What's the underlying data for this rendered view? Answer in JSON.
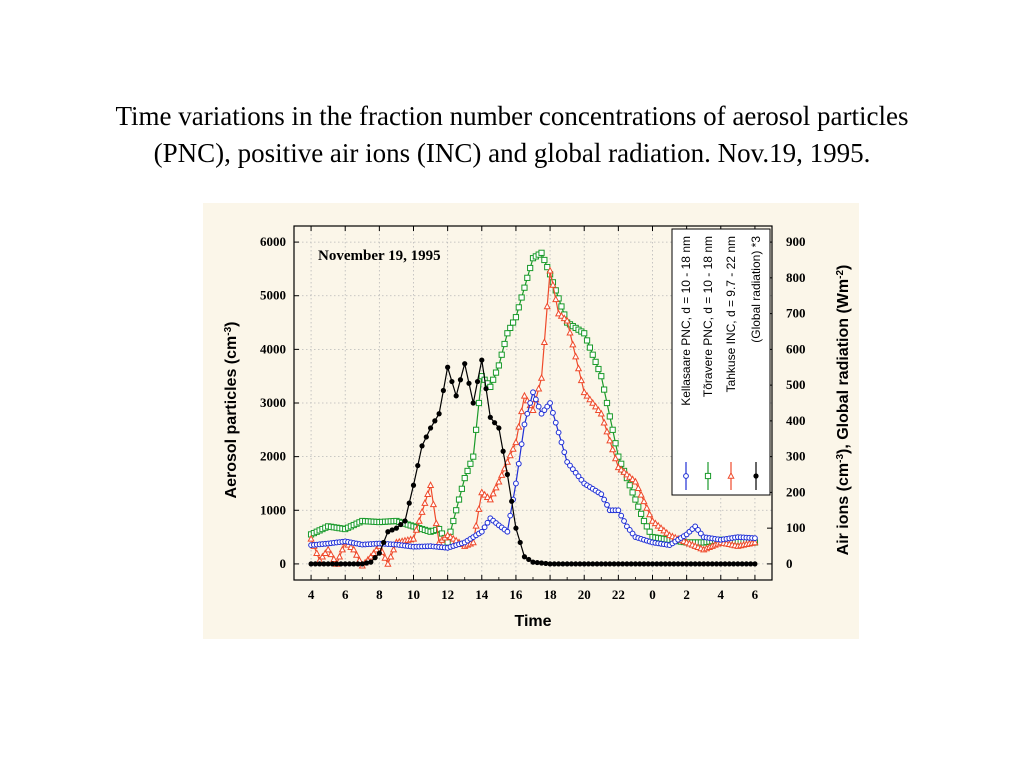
{
  "title": {
    "line1": "Time variations in the fraction number concentrations of aerosol particles",
    "line2": "(PNC), positive air ions (INC) and global radiation. Nov.19, 1995."
  },
  "chart_data": {
    "type": "line",
    "annotation": "November 19, 1995",
    "xlabel": "Time",
    "ylabel_left": "Aerosol particles (cm-3)",
    "ylabel_right": "Air ions (cm-3), Global radiation (Wm-2)",
    "x_tick_labels": [
      "4",
      "6",
      "8",
      "10",
      "12",
      "14",
      "16",
      "18",
      "20",
      "22",
      "0",
      "2",
      "4",
      "6"
    ],
    "x_hours_since_start": [
      0,
      2,
      4,
      6,
      8,
      10,
      12,
      14,
      16,
      18,
      20,
      22,
      24,
      26
    ],
    "left_axis": {
      "ylim": [
        -300,
        6300
      ],
      "ticks": [
        0,
        1000,
        2000,
        3000,
        4000,
        5000,
        6000
      ]
    },
    "right_axis": {
      "ylim": [
        -45,
        945
      ],
      "ticks": [
        0,
        100,
        200,
        300,
        400,
        500,
        600,
        700,
        800,
        900
      ]
    },
    "grid": true,
    "legend_position": "top-right, vertical",
    "colors": {
      "kellasaare": "#1f2fd6",
      "toravere": "#1a9a2a",
      "tahkuse": "#ef4a2b",
      "radiation": "#000000",
      "panel": "#fbf6e9"
    },
    "series": [
      {
        "name": "Kellasaare PNC, d = 10 - 18 nm",
        "key": "kellasaare",
        "axis": "left",
        "marker": "circle",
        "values": [
          [
            0,
            350
          ],
          [
            1,
            380
          ],
          [
            2,
            420
          ],
          [
            3,
            360
          ],
          [
            4,
            380
          ],
          [
            5,
            360
          ],
          [
            6,
            320
          ],
          [
            7,
            330
          ],
          [
            8,
            300
          ],
          [
            9,
            400
          ],
          [
            10,
            600
          ],
          [
            10.5,
            850
          ],
          [
            11,
            720
          ],
          [
            11.5,
            600
          ],
          [
            12,
            1500
          ],
          [
            12.5,
            2600
          ],
          [
            13,
            3200
          ],
          [
            13.5,
            2800
          ],
          [
            14,
            3000
          ],
          [
            15,
            1900
          ],
          [
            16,
            1500
          ],
          [
            17,
            1300
          ],
          [
            17.5,
            1000
          ],
          [
            18,
            1000
          ],
          [
            18.5,
            700
          ],
          [
            19,
            500
          ],
          [
            20,
            400
          ],
          [
            21,
            350
          ],
          [
            22,
            550
          ],
          [
            22.5,
            700
          ],
          [
            23,
            500
          ],
          [
            24,
            450
          ],
          [
            25,
            500
          ],
          [
            26,
            480
          ]
        ]
      },
      {
        "name": "Tõravere PNC, d = 10 - 18 nm",
        "key": "toravere",
        "axis": "left",
        "marker": "square",
        "values": [
          [
            0,
            550
          ],
          [
            1,
            700
          ],
          [
            2,
            650
          ],
          [
            3,
            800
          ],
          [
            4,
            780
          ],
          [
            5,
            800
          ],
          [
            6,
            700
          ],
          [
            7,
            600
          ],
          [
            7.5,
            650
          ],
          [
            8,
            400
          ],
          [
            9,
            1600
          ],
          [
            9.5,
            2000
          ],
          [
            10,
            3500
          ],
          [
            10.5,
            3300
          ],
          [
            11,
            3700
          ],
          [
            11.5,
            4300
          ],
          [
            12,
            4600
          ],
          [
            13,
            5700
          ],
          [
            13.5,
            5800
          ],
          [
            14,
            5400
          ],
          [
            15,
            4500
          ],
          [
            16,
            4300
          ],
          [
            17,
            3500
          ],
          [
            18,
            2000
          ],
          [
            19,
            1200
          ],
          [
            19.5,
            800
          ],
          [
            20,
            500
          ],
          [
            21,
            450
          ],
          [
            22,
            400
          ],
          [
            23,
            400
          ],
          [
            24,
            450
          ],
          [
            25,
            420
          ],
          [
            26,
            400
          ]
        ]
      },
      {
        "name": "Tahkuse INC, d = 9.7 - 22 nm",
        "key": "tahkuse",
        "axis": "right",
        "marker": "triangle",
        "values": [
          [
            0,
            70
          ],
          [
            0.5,
            10
          ],
          [
            1,
            40
          ],
          [
            1.5,
            0
          ],
          [
            2,
            60
          ],
          [
            2.5,
            40
          ],
          [
            3,
            -5
          ],
          [
            3.5,
            20
          ],
          [
            4,
            50
          ],
          [
            4.5,
            0
          ],
          [
            5,
            60
          ],
          [
            6,
            70
          ],
          [
            7,
            220
          ],
          [
            7.5,
            60
          ],
          [
            8,
            80
          ],
          [
            9,
            50
          ],
          [
            9.5,
            60
          ],
          [
            10,
            200
          ],
          [
            10.5,
            180
          ],
          [
            11,
            230
          ],
          [
            12,
            340
          ],
          [
            12.5,
            470
          ],
          [
            13,
            430
          ],
          [
            13.5,
            520
          ],
          [
            14,
            820
          ],
          [
            14.5,
            700
          ],
          [
            15,
            680
          ],
          [
            16,
            480
          ],
          [
            17,
            420
          ],
          [
            18,
            270
          ],
          [
            19,
            230
          ],
          [
            20,
            120
          ],
          [
            21,
            80
          ],
          [
            22,
            60
          ],
          [
            23,
            40
          ],
          [
            24,
            60
          ],
          [
            25,
            50
          ],
          [
            26,
            60
          ]
        ]
      },
      {
        "name": "(Global radiation) *3",
        "key": "radiation",
        "axis": "right",
        "marker": "dot",
        "values": [
          [
            0,
            0
          ],
          [
            1,
            0
          ],
          [
            2,
            0
          ],
          [
            3,
            0
          ],
          [
            3.5,
            5
          ],
          [
            4,
            30
          ],
          [
            4.5,
            90
          ],
          [
            5,
            100
          ],
          [
            5.5,
            120
          ],
          [
            6,
            220
          ],
          [
            6.5,
            330
          ],
          [
            7,
            380
          ],
          [
            7.5,
            420
          ],
          [
            8,
            550
          ],
          [
            8.5,
            470
          ],
          [
            9,
            560
          ],
          [
            9.5,
            450
          ],
          [
            10,
            570
          ],
          [
            10.5,
            410
          ],
          [
            11,
            380
          ],
          [
            11.5,
            250
          ],
          [
            12,
            100
          ],
          [
            12.5,
            20
          ],
          [
            13,
            5
          ],
          [
            14,
            0
          ],
          [
            16,
            0
          ],
          [
            18,
            0
          ],
          [
            20,
            0
          ],
          [
            22,
            0
          ],
          [
            24,
            0
          ],
          [
            26,
            0
          ]
        ]
      }
    ]
  }
}
